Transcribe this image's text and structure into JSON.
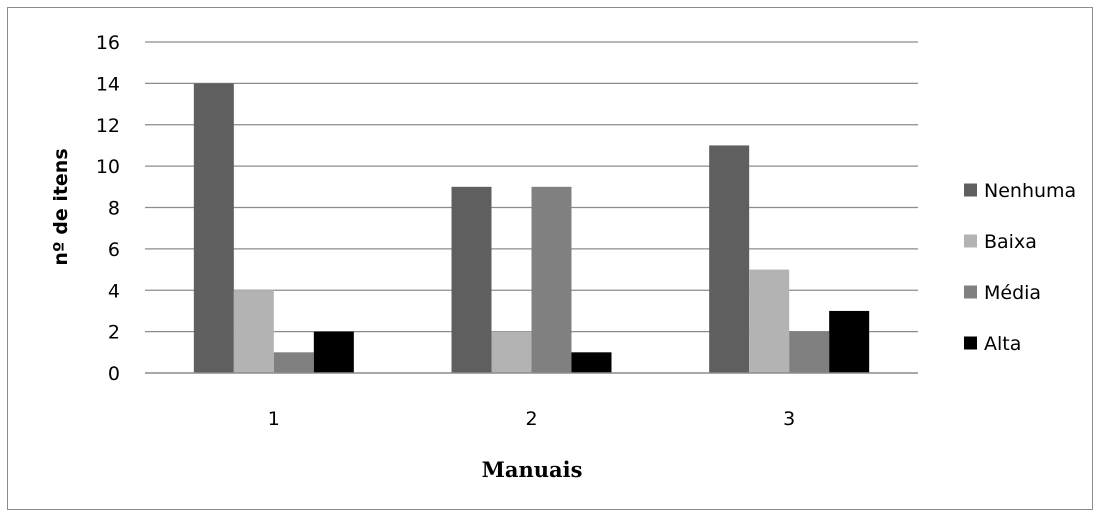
{
  "chart_data": {
    "type": "bar",
    "categories": [
      "1",
      "2",
      "3"
    ],
    "series": [
      {
        "name": "Nenhuma",
        "values": [
          14,
          9,
          11
        ],
        "color": "#5f5f5f"
      },
      {
        "name": "Baixa",
        "values": [
          4,
          2,
          5
        ],
        "color": "#b3b3b3"
      },
      {
        "name": "Média",
        "values": [
          1,
          9,
          2
        ],
        "color": "#808080"
      },
      {
        "name": "Alta",
        "values": [
          2,
          1,
          3
        ],
        "color": "#000000"
      }
    ],
    "title": "",
    "xlabel": "Manuais",
    "ylabel": "nº de itens",
    "ylim": [
      0,
      16
    ],
    "yticks": [
      0,
      2,
      4,
      6,
      8,
      10,
      12,
      14,
      16
    ],
    "grid": true,
    "legend_position": "right"
  }
}
